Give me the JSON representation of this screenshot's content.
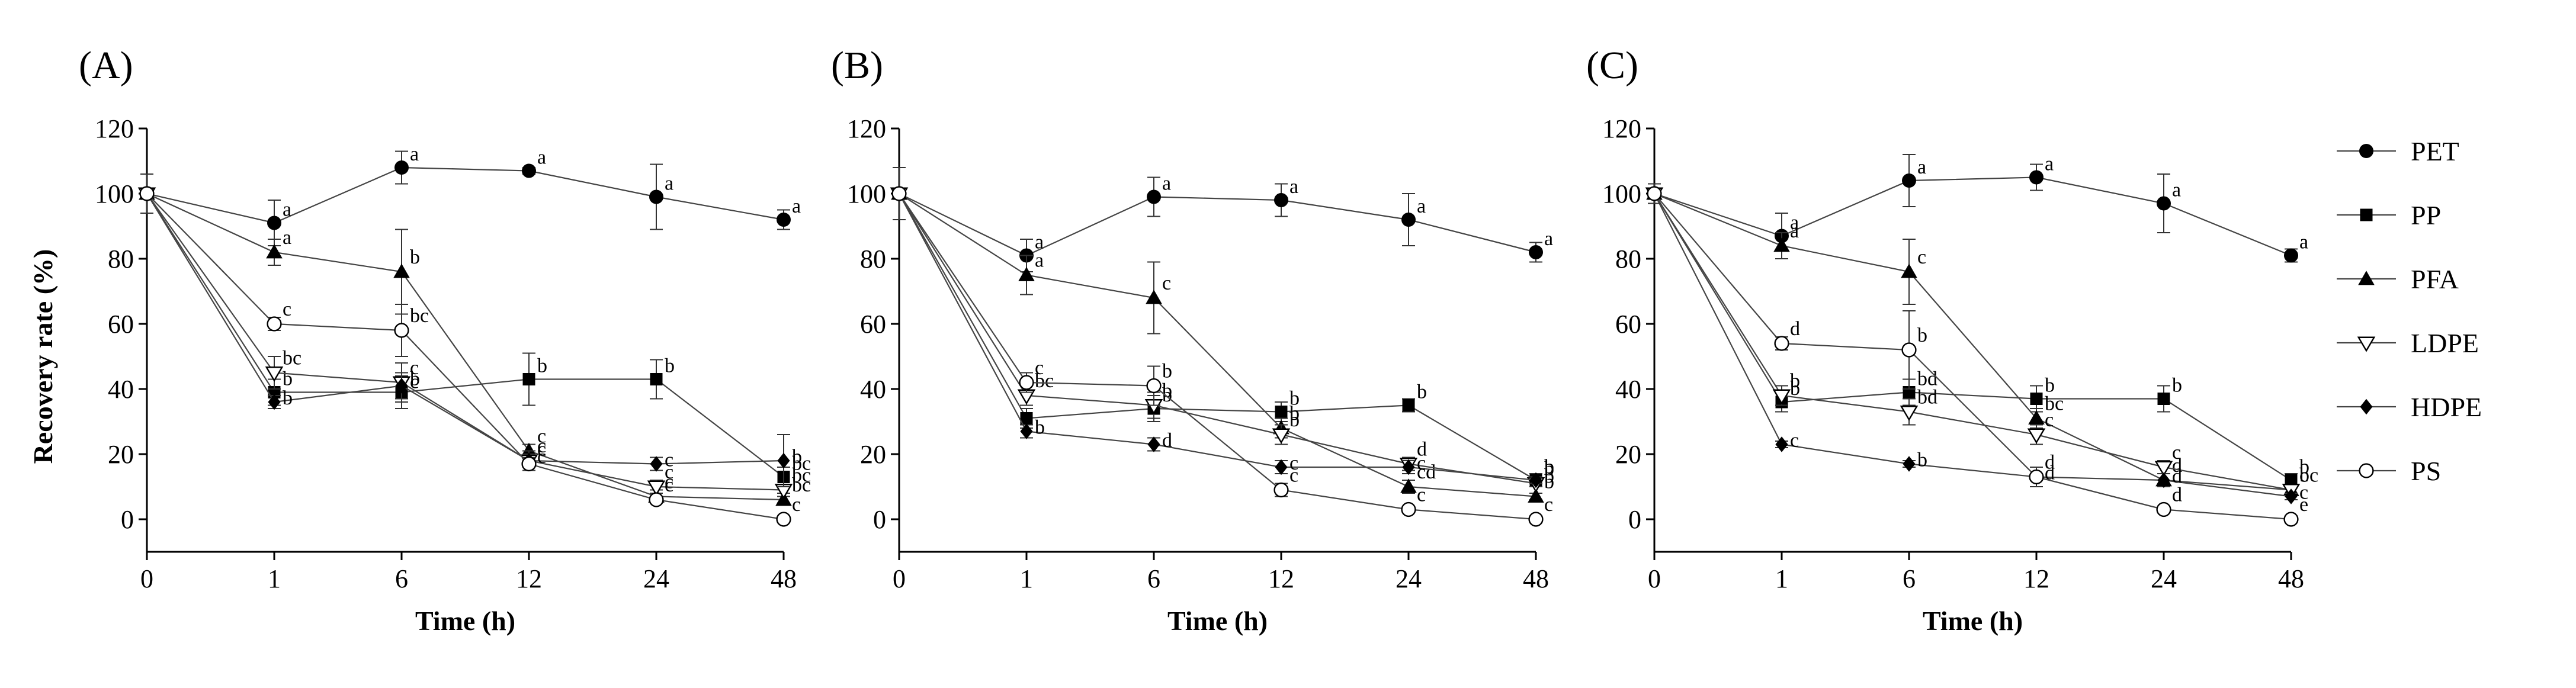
{
  "figure": {
    "ylabel": "Recovery rate (%)"
  },
  "legend": {
    "position": "right",
    "entries": [
      {
        "name": "PET",
        "marker": "filled-circle"
      },
      {
        "name": "PP",
        "marker": "filled-square"
      },
      {
        "name": "PFA",
        "marker": "filled-triangle"
      },
      {
        "name": "LDPE",
        "marker": "open-triangle-down"
      },
      {
        "name": "HDPE",
        "marker": "filled-diamond"
      },
      {
        "name": "PS",
        "marker": "open-circle"
      }
    ]
  },
  "chart_data": [
    {
      "type": "line",
      "panel": "(A)",
      "xlabel": "Time (h)",
      "ylabel": "Recovery rate (%)",
      "categories": [
        "0",
        "1",
        "6",
        "12",
        "24",
        "48"
      ],
      "yticks": [
        0,
        20,
        40,
        60,
        80,
        100,
        120
      ],
      "ylim": [
        -10,
        120
      ],
      "series": [
        {
          "name": "PET",
          "values": [
            100,
            91,
            108,
            107,
            99,
            92
          ],
          "errors": [
            6,
            7,
            5,
            1,
            10,
            3
          ],
          "labels": [
            "",
            "a",
            "a",
            "a",
            "a",
            "a"
          ]
        },
        {
          "name": "PP",
          "values": [
            100,
            39,
            39,
            43,
            43,
            13
          ],
          "errors": [
            6,
            4,
            5,
            8,
            6,
            3
          ],
          "labels": [
            "",
            "b",
            "b",
            "b",
            "b",
            "bc"
          ]
        },
        {
          "name": "PFA",
          "values": [
            100,
            82,
            76,
            21,
            7,
            6
          ],
          "errors": [
            6,
            4,
            13,
            2,
            2,
            1
          ],
          "labels": [
            "",
            "a",
            "b",
            "c",
            "c",
            "bc"
          ]
        },
        {
          "name": "LDPE",
          "values": [
            100,
            45,
            42,
            18,
            10,
            9
          ],
          "errors": [
            6,
            5,
            6,
            3,
            2,
            1
          ],
          "labels": [
            "",
            "bc",
            "c",
            "c",
            "c",
            "bc"
          ]
        },
        {
          "name": "HDPE",
          "values": [
            100,
            36,
            41,
            18,
            17,
            18
          ],
          "errors": [
            6,
            2,
            4,
            2,
            2,
            8
          ],
          "labels": [
            "",
            "b",
            "c",
            "c",
            "c",
            "b"
          ]
        },
        {
          "name": "PS",
          "values": [
            100,
            60,
            58,
            17,
            6,
            0
          ],
          "errors": [
            6,
            2,
            8,
            2,
            1,
            1
          ],
          "labels": [
            "",
            "c",
            "bc",
            "c",
            "c",
            "c"
          ]
        }
      ]
    },
    {
      "type": "line",
      "panel": "(B)",
      "xlabel": "Time (h)",
      "ylabel": "Recovery rate (%)",
      "categories": [
        "0",
        "1",
        "6",
        "12",
        "24",
        "48"
      ],
      "yticks": [
        0,
        20,
        40,
        60,
        80,
        100,
        120
      ],
      "ylim": [
        -10,
        120
      ],
      "series": [
        {
          "name": "PET",
          "values": [
            100,
            81,
            99,
            98,
            92,
            82
          ],
          "errors": [
            8,
            5,
            6,
            5,
            8,
            3
          ],
          "labels": [
            "",
            "a",
            "a",
            "a",
            "a",
            "a"
          ]
        },
        {
          "name": "PP",
          "values": [
            100,
            31,
            34,
            33,
            35,
            12
          ],
          "errors": [
            8,
            3,
            4,
            3,
            2,
            2
          ],
          "labels": [
            "",
            "",
            "b",
            "b",
            "b",
            "b"
          ]
        },
        {
          "name": "PFA",
          "values": [
            100,
            75,
            68,
            28,
            10,
            7
          ],
          "errors": [
            8,
            6,
            11,
            3,
            2,
            1
          ],
          "labels": [
            "",
            "a",
            "c",
            "b",
            "cd",
            "b"
          ]
        },
        {
          "name": "LDPE",
          "values": [
            100,
            38,
            35,
            26,
            17,
            11
          ],
          "errors": [
            8,
            3,
            4,
            3,
            2,
            1
          ],
          "labels": [
            "",
            "bc",
            "b",
            "b",
            "d",
            "b"
          ]
        },
        {
          "name": "HDPE",
          "values": [
            100,
            27,
            23,
            16,
            16,
            12
          ],
          "errors": [
            8,
            2,
            2,
            2,
            2,
            1
          ],
          "labels": [
            "",
            "b",
            "d",
            "c",
            "c",
            "b"
          ]
        },
        {
          "name": "PS",
          "values": [
            100,
            42,
            41,
            9,
            3,
            0
          ],
          "errors": [
            8,
            3,
            6,
            2,
            1,
            1
          ],
          "labels": [
            "",
            "c",
            "b",
            "c",
            "c",
            "c"
          ]
        }
      ]
    },
    {
      "type": "line",
      "panel": "(C)",
      "xlabel": "Time (h)",
      "ylabel": "Recovery rate (%)",
      "categories": [
        "0",
        "1",
        "6",
        "12",
        "24",
        "48"
      ],
      "yticks": [
        0,
        20,
        40,
        60,
        80,
        100,
        120
      ],
      "ylim": [
        -10,
        120
      ],
      "series": [
        {
          "name": "PET",
          "values": [
            100,
            87,
            104,
            105,
            97,
            81
          ],
          "errors": [
            3,
            7,
            8,
            4,
            9,
            2
          ],
          "labels": [
            "",
            "a",
            "a",
            "a",
            "a",
            "a"
          ]
        },
        {
          "name": "PP",
          "values": [
            100,
            36,
            39,
            37,
            37,
            12
          ],
          "errors": [
            3,
            3,
            4,
            4,
            4,
            2
          ],
          "labels": [
            "",
            "b",
            "bd",
            "b",
            "b",
            "b"
          ]
        },
        {
          "name": "PFA",
          "values": [
            100,
            84,
            76,
            31,
            12,
            9
          ],
          "errors": [
            3,
            4,
            10,
            3,
            2,
            1
          ],
          "labels": [
            "",
            "a",
            "c",
            "bc",
            "d",
            "bc"
          ]
        },
        {
          "name": "LDPE",
          "values": [
            100,
            38,
            33,
            26,
            16,
            9
          ],
          "errors": [
            3,
            3,
            4,
            3,
            2,
            1
          ],
          "labels": [
            "",
            "b",
            "bd",
            "c",
            "c",
            "c"
          ]
        },
        {
          "name": "HDPE",
          "values": [
            100,
            23,
            17,
            13,
            12,
            7
          ],
          "errors": [
            3,
            1,
            1,
            3,
            2,
            1
          ],
          "labels": [
            "",
            "c",
            "b",
            "d",
            "d",
            "c"
          ]
        },
        {
          "name": "PS",
          "values": [
            100,
            54,
            52,
            13,
            3,
            0
          ],
          "errors": [
            3,
            2,
            12,
            3,
            1,
            1
          ],
          "labels": [
            "",
            "d",
            "b",
            "d",
            "d",
            "e"
          ]
        }
      ]
    }
  ]
}
